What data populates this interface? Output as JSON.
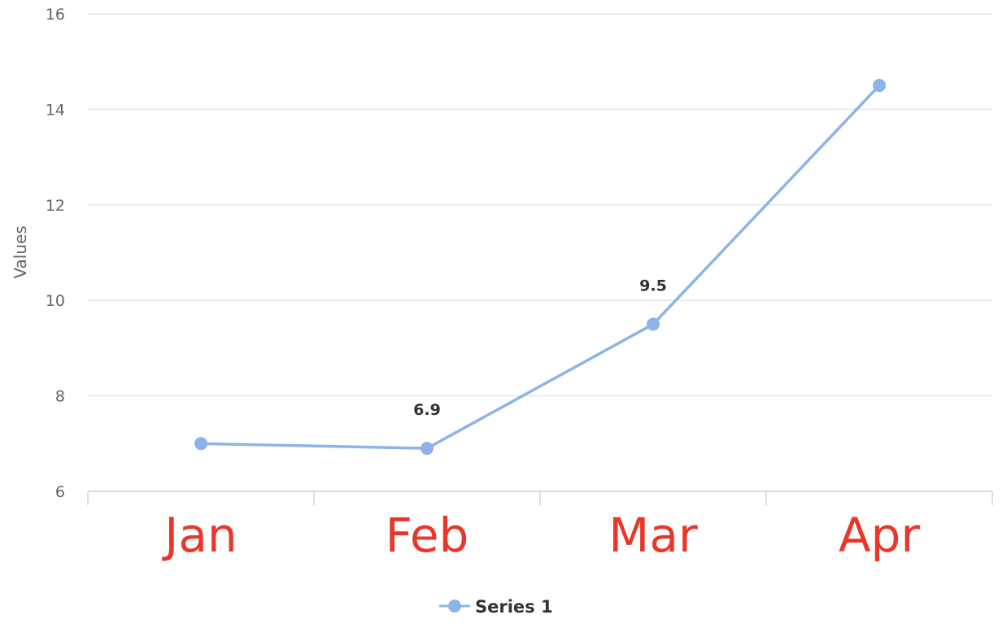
{
  "chart_data": {
    "type": "line",
    "categories": [
      "Jan",
      "Feb",
      "Mar",
      "Apr"
    ],
    "series": [
      {
        "name": "Series 1",
        "values": [
          7.0,
          6.9,
          9.5,
          14.5
        ],
        "data_labels": [
          "",
          "6.9",
          "9.5",
          ""
        ]
      }
    ],
    "ylabel": "Values",
    "xlabel": "",
    "ylim": [
      6,
      16
    ],
    "y_ticks": [
      6,
      8,
      10,
      12,
      14,
      16
    ],
    "grid": true,
    "legend_position": "bottom-center"
  },
  "colors": {
    "series": "#8cb4e8",
    "x_tick_label": "#e8372a",
    "grid": "#e6e6e6",
    "axis": "#c8d5ea"
  }
}
